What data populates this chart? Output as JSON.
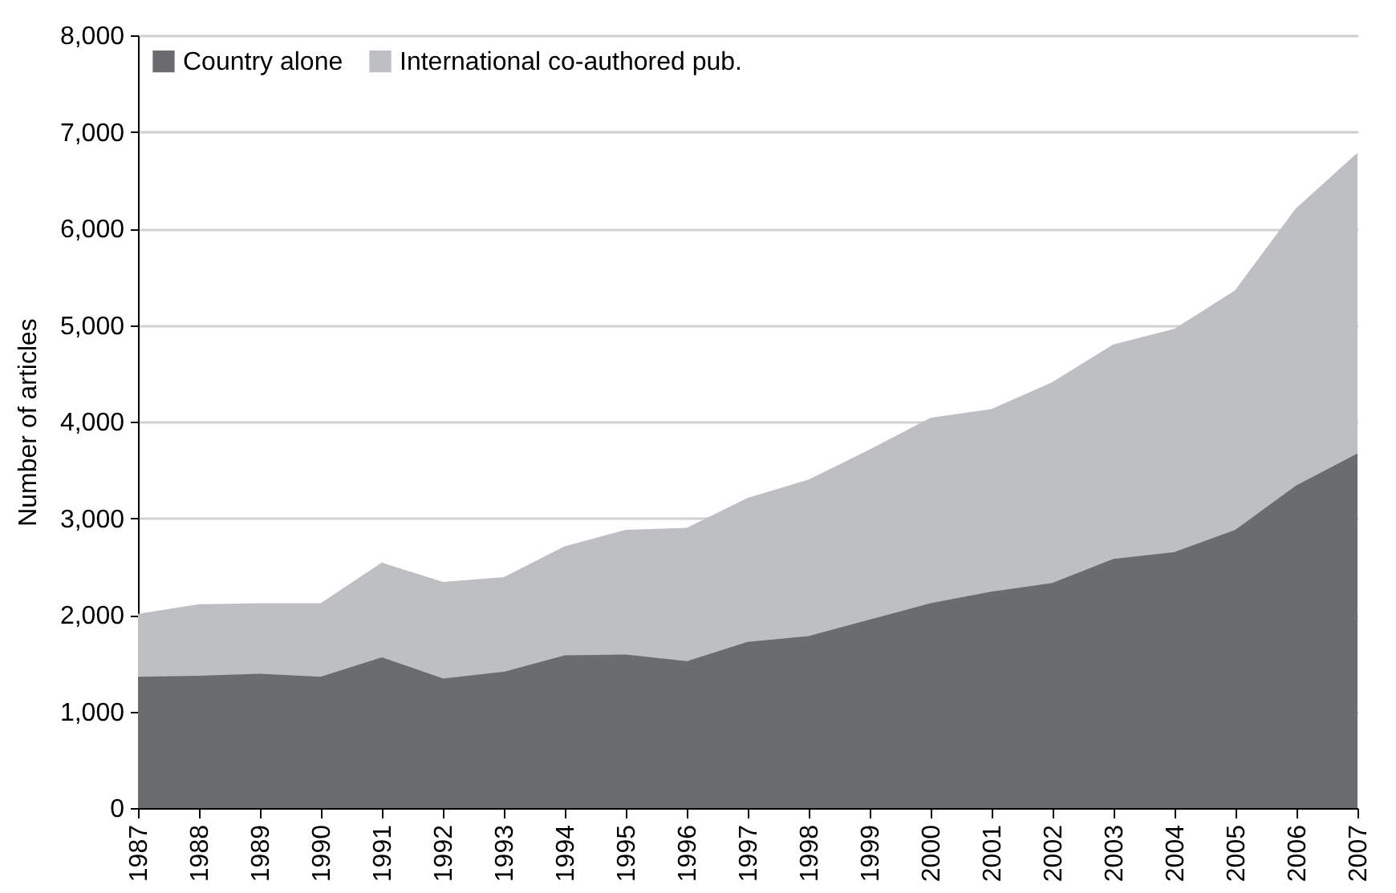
{
  "chart_data": {
    "type": "area",
    "ylabel": "Number of articles",
    "stacked": true,
    "grid": "y",
    "legend": "top left",
    "categories": [
      "1987",
      "1988",
      "1989",
      "1990",
      "1991",
      "1992",
      "1993",
      "1994",
      "1995",
      "1996",
      "1997",
      "1998",
      "1999",
      "2000",
      "2001",
      "2002",
      "2003",
      "2004",
      "2005",
      "2006",
      "2007"
    ],
    "ylim": [
      0,
      8000
    ],
    "yticks": [
      {
        "value": 0,
        "label": "0"
      },
      {
        "value": 1000,
        "label": "1,000"
      },
      {
        "value": 2000,
        "label": "2,000"
      },
      {
        "value": 3000,
        "label": "3,000"
      },
      {
        "value": 4000,
        "label": "4,000"
      },
      {
        "value": 5000,
        "label": "5,000"
      },
      {
        "value": 6000,
        "label": "6,000"
      },
      {
        "value": 7000,
        "label": "7,000"
      },
      {
        "value": 8000,
        "label": "8,000"
      }
    ],
    "series": [
      {
        "name": "Country alone",
        "color": "#6b6c70",
        "values": [
          1350,
          1360,
          1380,
          1350,
          1550,
          1330,
          1400,
          1570,
          1580,
          1510,
          1710,
          1770,
          1940,
          2110,
          2230,
          2320,
          2570,
          2640,
          2870,
          3330,
          3660
        ]
      },
      {
        "name": "International co-authored pub.",
        "color": "#bebfc2",
        "values": [
          650,
          740,
          730,
          760,
          980,
          1000,
          980,
          1130,
          1290,
          1380,
          1490,
          1620,
          1760,
          1920,
          1890,
          2080,
          2220,
          2310,
          2480,
          2870,
          3110
        ]
      }
    ]
  }
}
